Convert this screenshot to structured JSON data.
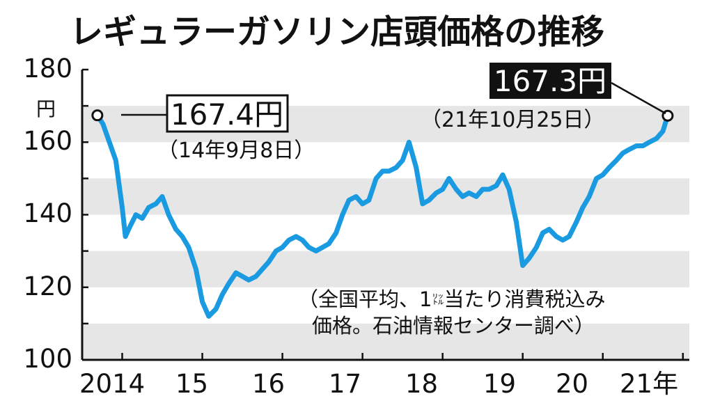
{
  "chart_data": {
    "type": "line",
    "title": "レギュラーガソリン店頭価格の推移",
    "ylabel": "円",
    "ylim": [
      100,
      180
    ],
    "yticks": [
      "100",
      "120",
      "140",
      "160",
      "180"
    ],
    "xlim": [
      2014.5,
      2022.08
    ],
    "xtick_labels": [
      "2014",
      "15",
      "16",
      "17",
      "18",
      "19",
      "20",
      "21年"
    ],
    "grid": "alternating bands",
    "line_color": "#1a9ae0",
    "band_color": "#e6e6e6",
    "series": [
      {
        "x": [
          2014.69,
          2014.76,
          2014.84,
          2014.92,
          2015.0,
          2015.04,
          2015.08,
          2015.17,
          2015.25,
          2015.33,
          2015.42,
          2015.5,
          2015.58,
          2015.67,
          2015.75,
          2015.83,
          2015.92,
          2016.0,
          2016.08,
          2016.17,
          2016.25,
          2016.33,
          2016.42,
          2016.5,
          2016.58,
          2016.67,
          2016.75,
          2016.83,
          2016.92,
          2017.0,
          2017.08,
          2017.17,
          2017.25,
          2017.33,
          2017.42,
          2017.5,
          2017.58,
          2017.67,
          2017.75,
          2017.83,
          2017.92,
          2018.0,
          2018.08,
          2018.17,
          2018.25,
          2018.33,
          2018.42,
          2018.5,
          2018.58,
          2018.67,
          2018.75,
          2018.83,
          2018.92,
          2019.0,
          2019.08,
          2019.17,
          2019.25,
          2019.33,
          2019.42,
          2019.5,
          2019.58,
          2019.67,
          2019.75,
          2019.83,
          2019.92,
          2020.0,
          2020.08,
          2020.17,
          2020.25,
          2020.33,
          2020.42,
          2020.5,
          2020.58,
          2020.67,
          2020.75,
          2020.83,
          2020.92,
          2021.0,
          2021.08,
          2021.17,
          2021.25,
          2021.33,
          2021.42,
          2021.5,
          2021.58,
          2021.67,
          2021.75,
          2021.81
        ],
        "y": [
          167.4,
          165,
          160,
          155,
          142,
          134,
          136,
          140,
          139,
          142,
          143,
          145,
          140,
          136,
          134,
          131,
          125,
          116,
          112,
          114,
          118,
          121,
          124,
          123,
          122,
          123,
          125,
          127,
          130,
          131,
          133,
          134,
          133,
          131,
          130,
          131,
          132,
          135,
          140,
          144,
          145,
          143,
          144,
          150,
          152,
          152,
          153,
          155,
          160,
          153,
          143,
          144,
          146,
          147,
          150,
          147,
          145,
          146,
          145,
          147,
          147,
          148,
          151,
          147,
          138,
          126,
          128,
          131,
          135,
          136,
          134,
          133,
          134,
          138,
          142,
          145,
          150,
          151,
          153,
          155,
          157,
          158,
          159,
          159,
          160,
          161,
          163,
          167.3
        ]
      }
    ],
    "annotations": {
      "start_value": "167.4円",
      "start_date": "（14年9月8日）",
      "end_value": "167.3円",
      "end_date": "（21年10月25日）",
      "note_line1": "（全国平均、1",
      "note_small": "㍑",
      "note_line1_end": "当たり消費税込み",
      "note_line2": "価格。石油情報センター調べ）"
    }
  }
}
